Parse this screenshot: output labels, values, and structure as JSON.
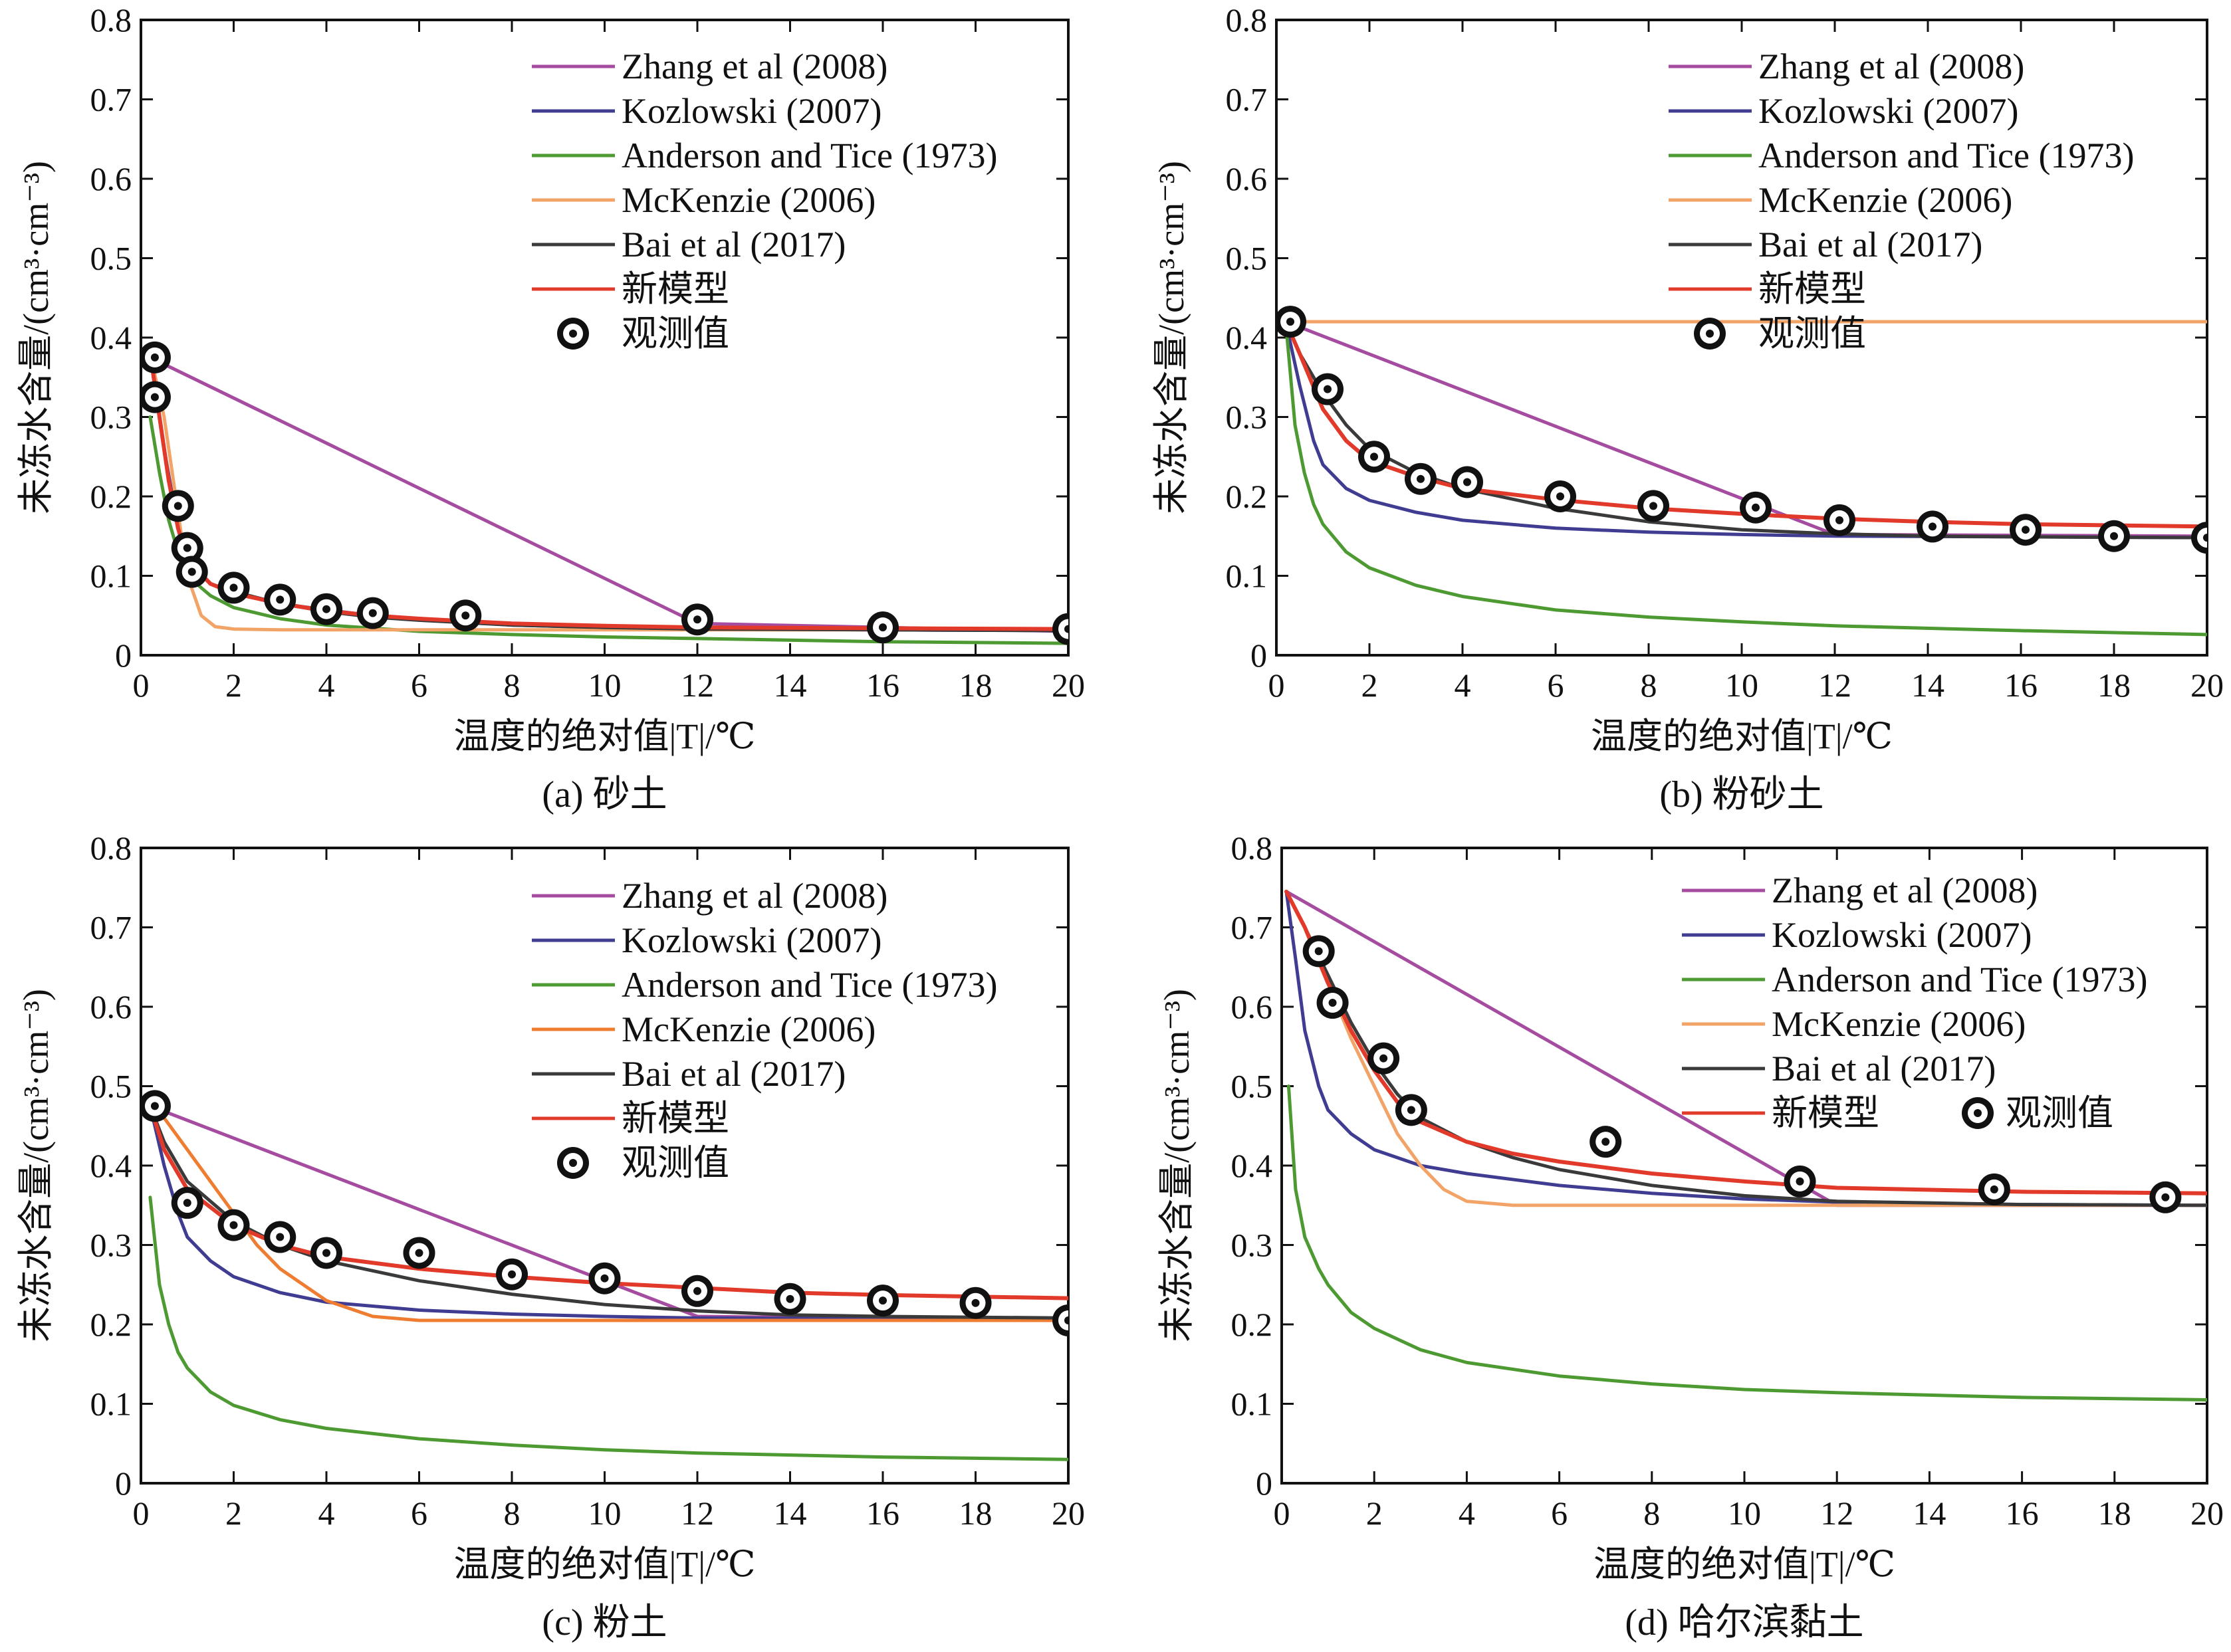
{
  "colors": {
    "zhang": "#a54ca0",
    "kozlowski": "#3f3c92",
    "anderson": "#4e9a32",
    "mckenzie": "#f2a468",
    "mckenzie_c": "#ee7d32",
    "bai": "#3a3a3a",
    "new": "#e23a2a",
    "obs_fill": "#111111",
    "obs_ring": "#ffffff"
  },
  "chart_data": [
    {
      "type": "line",
      "caption": "(a) 砂土",
      "xlabel": "温度的绝对值|T|/℃",
      "ylabel": "未冻水含量/(cm³·cm⁻³)",
      "xlim": [
        0,
        20
      ],
      "ylim": [
        0,
        0.8
      ],
      "xticks": [
        "0",
        "2",
        "4",
        "6",
        "8",
        "10",
        "12",
        "14",
        "16",
        "18",
        "20"
      ],
      "yticks": [
        "0",
        "0.1",
        "0.2",
        "0.3",
        "0.4",
        "0.5",
        "0.6",
        "0.7",
        "0.8"
      ],
      "legend_position": "top-right",
      "series": [
        {
          "name": "Zhang et al (2008)",
          "color_key": "zhang",
          "x": [
            0.2,
            12,
            20
          ],
          "y": [
            0.375,
            0.04,
            0.03
          ]
        },
        {
          "name": "Kozlowski (2007)",
          "color_key": "kozlowski",
          "x": [
            0.2,
            0.5,
            0.8,
            1.0,
            1.5,
            2,
            3,
            4,
            5,
            6,
            8,
            10,
            12,
            16,
            20
          ],
          "y": [
            0.38,
            0.26,
            0.16,
            0.12,
            0.09,
            0.08,
            0.065,
            0.057,
            0.05,
            0.045,
            0.038,
            0.035,
            0.033,
            0.032,
            0.031
          ]
        },
        {
          "name": "Anderson and Tice (1973)",
          "color_key": "anderson",
          "x": [
            0.2,
            0.4,
            0.6,
            0.8,
            1,
            1.5,
            2,
            3,
            4,
            6,
            8,
            10,
            12,
            16,
            20
          ],
          "y": [
            0.3,
            0.23,
            0.17,
            0.13,
            0.1,
            0.075,
            0.06,
            0.046,
            0.038,
            0.03,
            0.026,
            0.023,
            0.021,
            0.017,
            0.015
          ]
        },
        {
          "name": "McKenzie (2006)",
          "color_key": "mckenzie",
          "x": [
            0.2,
            0.5,
            0.8,
            1.0,
            1.3,
            1.6,
            2,
            3,
            4,
            6,
            10,
            20
          ],
          "y": [
            0.38,
            0.3,
            0.18,
            0.1,
            0.05,
            0.036,
            0.033,
            0.032,
            0.032,
            0.032,
            0.032,
            0.032
          ]
        },
        {
          "name": "Bai et al (2017)",
          "color_key": "bai",
          "x": [
            0.2,
            0.4,
            0.6,
            0.8,
            1.0,
            1.5,
            2,
            3,
            4,
            5,
            6,
            8,
            10,
            12,
            16,
            20
          ],
          "y": [
            0.38,
            0.3,
            0.22,
            0.16,
            0.12,
            0.09,
            0.08,
            0.065,
            0.055,
            0.048,
            0.044,
            0.038,
            0.035,
            0.033,
            0.032,
            0.031
          ]
        },
        {
          "name": "新模型",
          "color_key": "new",
          "x": [
            0.2,
            0.4,
            0.6,
            0.8,
            1.0,
            1.5,
            2,
            3,
            4,
            5,
            6,
            8,
            10,
            12,
            16,
            20
          ],
          "y": [
            0.38,
            0.3,
            0.22,
            0.16,
            0.12,
            0.09,
            0.078,
            0.065,
            0.056,
            0.05,
            0.046,
            0.04,
            0.037,
            0.035,
            0.034,
            0.033
          ]
        },
        {
          "name": "观测值",
          "marker": "obs",
          "x": [
            0.3,
            0.3,
            0.8,
            1.0,
            1.1,
            2.0,
            3.0,
            4.0,
            5.0,
            7.0,
            12.0,
            16.0,
            20.0
          ],
          "y": [
            0.375,
            0.325,
            0.188,
            0.135,
            0.105,
            0.085,
            0.07,
            0.058,
            0.053,
            0.05,
            0.045,
            0.035,
            0.033
          ]
        }
      ]
    },
    {
      "type": "line",
      "caption": "(b) 粉砂土",
      "xlabel": "温度的绝对值|T|/℃",
      "ylabel": "未冻水含量/(cm³·cm⁻³)",
      "xlim": [
        0,
        20
      ],
      "ylim": [
        0,
        0.8
      ],
      "xticks": [
        "0",
        "2",
        "4",
        "6",
        "8",
        "10",
        "12",
        "14",
        "16",
        "18",
        "20"
      ],
      "yticks": [
        "0",
        "0.1",
        "0.2",
        "0.3",
        "0.4",
        "0.5",
        "0.6",
        "0.7",
        "0.8"
      ],
      "legend_position": "top-right",
      "series": [
        {
          "name": "Zhang et al (2008)",
          "color_key": "zhang",
          "x": [
            0.2,
            12,
            20
          ],
          "y": [
            0.42,
            0.152,
            0.15
          ]
        },
        {
          "name": "Kozlowski (2007)",
          "color_key": "kozlowski",
          "x": [
            0.2,
            0.5,
            0.8,
            1.0,
            1.5,
            2,
            3,
            4,
            6,
            8,
            10,
            12,
            16,
            20
          ],
          "y": [
            0.42,
            0.34,
            0.27,
            0.24,
            0.21,
            0.195,
            0.18,
            0.17,
            0.16,
            0.155,
            0.152,
            0.15,
            0.149,
            0.148
          ]
        },
        {
          "name": "Anderson and Tice (1973)",
          "color_key": "anderson",
          "x": [
            0.2,
            0.4,
            0.6,
            0.8,
            1,
            1.5,
            2,
            3,
            4,
            6,
            8,
            10,
            12,
            16,
            20
          ],
          "y": [
            0.42,
            0.29,
            0.23,
            0.19,
            0.165,
            0.13,
            0.11,
            0.088,
            0.074,
            0.057,
            0.048,
            0.042,
            0.037,
            0.031,
            0.026
          ]
        },
        {
          "name": "McKenzie (2006)",
          "color_key": "mckenzie",
          "x": [
            0.2,
            20
          ],
          "y": [
            0.42,
            0.42
          ]
        },
        {
          "name": "Bai et al (2017)",
          "color_key": "bai",
          "x": [
            0.2,
            0.5,
            1.0,
            1.5,
            2,
            3,
            4,
            6,
            8,
            10,
            12,
            14,
            16,
            20
          ],
          "y": [
            0.42,
            0.38,
            0.33,
            0.29,
            0.26,
            0.23,
            0.21,
            0.185,
            0.168,
            0.158,
            0.153,
            0.15,
            0.149,
            0.148
          ]
        },
        {
          "name": "新模型",
          "color_key": "new",
          "x": [
            0.2,
            0.5,
            1.0,
            1.5,
            2,
            3,
            4,
            6,
            8,
            10,
            12,
            14,
            16,
            20
          ],
          "y": [
            0.42,
            0.38,
            0.31,
            0.27,
            0.245,
            0.225,
            0.21,
            0.196,
            0.185,
            0.178,
            0.172,
            0.168,
            0.165,
            0.162
          ]
        },
        {
          "name": "观测值",
          "marker": "obs",
          "x": [
            0.3,
            1.1,
            2.1,
            3.1,
            4.1,
            6.1,
            8.1,
            10.3,
            12.1,
            14.1,
            16.1,
            18.0,
            20.0
          ],
          "y": [
            0.42,
            0.335,
            0.25,
            0.222,
            0.218,
            0.2,
            0.188,
            0.186,
            0.17,
            0.162,
            0.158,
            0.15,
            0.148
          ]
        }
      ]
    },
    {
      "type": "line",
      "caption": "(c) 粉土",
      "xlabel": "温度的绝对值|T|/℃",
      "ylabel": "未冻水含量/(cm³·cm⁻³)",
      "xlim": [
        0,
        20
      ],
      "ylim": [
        0,
        0.8
      ],
      "xticks": [
        "0",
        "2",
        "4",
        "6",
        "8",
        "10",
        "12",
        "14",
        "16",
        "18",
        "20"
      ],
      "yticks": [
        "0",
        "0.1",
        "0.2",
        "0.3",
        "0.4",
        "0.5",
        "0.6",
        "0.7",
        "0.8"
      ],
      "legend_position": "top-right",
      "series": [
        {
          "name": "Zhang et al (2008)",
          "color_key": "zhang",
          "x": [
            0.2,
            12,
            20
          ],
          "y": [
            0.475,
            0.21,
            0.205
          ]
        },
        {
          "name": "Kozlowski (2007)",
          "color_key": "kozlowski",
          "x": [
            0.2,
            0.5,
            0.8,
            1.0,
            1.5,
            2,
            3,
            4,
            6,
            8,
            10,
            12,
            16,
            20
          ],
          "y": [
            0.475,
            0.4,
            0.34,
            0.31,
            0.28,
            0.26,
            0.24,
            0.228,
            0.218,
            0.213,
            0.21,
            0.208,
            0.207,
            0.206
          ]
        },
        {
          "name": "Anderson and Tice (1973)",
          "color_key": "anderson",
          "x": [
            0.2,
            0.4,
            0.6,
            0.8,
            1,
            1.5,
            2,
            3,
            4,
            6,
            8,
            10,
            12,
            16,
            20
          ],
          "y": [
            0.36,
            0.25,
            0.2,
            0.165,
            0.145,
            0.115,
            0.098,
            0.08,
            0.069,
            0.056,
            0.048,
            0.042,
            0.038,
            0.033,
            0.03
          ]
        },
        {
          "name": "McKenzie (2006)",
          "color_key": "mckenzie_c",
          "x": [
            0.2,
            0.5,
            1.0,
            1.5,
            2,
            2.5,
            3,
            4,
            5,
            6,
            8,
            10,
            20
          ],
          "y": [
            0.475,
            0.46,
            0.42,
            0.38,
            0.34,
            0.3,
            0.27,
            0.23,
            0.21,
            0.205,
            0.205,
            0.205,
            0.205
          ]
        },
        {
          "name": "Bai et al (2017)",
          "color_key": "bai",
          "x": [
            0.2,
            0.5,
            1.0,
            2,
            3,
            4,
            6,
            8,
            10,
            12,
            14,
            16,
            20
          ],
          "y": [
            0.475,
            0.43,
            0.38,
            0.33,
            0.3,
            0.28,
            0.255,
            0.238,
            0.225,
            0.217,
            0.212,
            0.21,
            0.208
          ]
        },
        {
          "name": "新模型",
          "color_key": "new",
          "x": [
            0.2,
            0.5,
            1.0,
            2,
            3,
            4,
            6,
            8,
            10,
            12,
            14,
            16,
            20
          ],
          "y": [
            0.475,
            0.42,
            0.37,
            0.325,
            0.3,
            0.285,
            0.27,
            0.26,
            0.252,
            0.246,
            0.24,
            0.237,
            0.233
          ]
        },
        {
          "name": "观测值",
          "marker": "obs",
          "x": [
            0.3,
            1.0,
            2.0,
            3.0,
            4.0,
            6.0,
            8.0,
            10.0,
            12.0,
            14.0,
            16.0,
            18.0,
            20.0
          ],
          "y": [
            0.475,
            0.353,
            0.325,
            0.31,
            0.29,
            0.29,
            0.263,
            0.258,
            0.242,
            0.232,
            0.23,
            0.227,
            0.205
          ]
        }
      ]
    },
    {
      "type": "line",
      "caption": "(d) 哈尔滨黏土",
      "xlabel": "温度的绝对值|T|/℃",
      "ylabel": "未冻水含量/(cm³·cm⁻³)",
      "xlim": [
        0,
        20
      ],
      "ylim": [
        0,
        0.8
      ],
      "xticks": [
        "0",
        "2",
        "4",
        "6",
        "8",
        "10",
        "12",
        "14",
        "16",
        "18",
        "20"
      ],
      "yticks": [
        "0",
        "0.1",
        "0.2",
        "0.3",
        "0.4",
        "0.5",
        "0.6",
        "0.7",
        "0.8"
      ],
      "legend_position": "top-right",
      "series": [
        {
          "name": "Zhang et al (2008)",
          "color_key": "zhang",
          "x": [
            0.1,
            12,
            20
          ],
          "y": [
            0.745,
            0.35,
            0.35
          ]
        },
        {
          "name": "Kozlowski (2007)",
          "color_key": "kozlowski",
          "x": [
            0.1,
            0.3,
            0.5,
            0.8,
            1.0,
            1.5,
            2,
            3,
            4,
            6,
            8,
            10,
            12,
            16,
            20
          ],
          "y": [
            0.745,
            0.66,
            0.57,
            0.5,
            0.47,
            0.44,
            0.42,
            0.4,
            0.39,
            0.375,
            0.365,
            0.358,
            0.354,
            0.351,
            0.35
          ]
        },
        {
          "name": "Anderson and Tice (1973)",
          "color_key": "anderson",
          "x": [
            0.15,
            0.3,
            0.5,
            0.8,
            1,
            1.5,
            2,
            3,
            4,
            6,
            8,
            10,
            12,
            16,
            20
          ],
          "y": [
            0.5,
            0.37,
            0.31,
            0.27,
            0.25,
            0.215,
            0.195,
            0.168,
            0.152,
            0.135,
            0.125,
            0.118,
            0.114,
            0.108,
            0.105
          ]
        },
        {
          "name": "McKenzie (2006)",
          "color_key": "mckenzie",
          "x": [
            0.1,
            0.5,
            1.0,
            1.5,
            2,
            2.5,
            3,
            3.5,
            4,
            5,
            6,
            10,
            20
          ],
          "y": [
            0.745,
            0.7,
            0.63,
            0.56,
            0.5,
            0.44,
            0.4,
            0.37,
            0.355,
            0.35,
            0.35,
            0.35,
            0.35
          ]
        },
        {
          "name": "Bai et al (2017)",
          "color_key": "bai",
          "x": [
            0.1,
            0.5,
            1.0,
            1.5,
            2,
            2.5,
            3,
            4,
            5,
            6,
            8,
            10,
            12,
            16,
            20
          ],
          "y": [
            0.745,
            0.7,
            0.64,
            0.58,
            0.53,
            0.49,
            0.46,
            0.43,
            0.41,
            0.395,
            0.375,
            0.362,
            0.355,
            0.351,
            0.35
          ]
        },
        {
          "name": "新模型",
          "color_key": "new",
          "x": [
            0.1,
            0.5,
            1.0,
            1.5,
            2,
            2.5,
            3,
            4,
            5,
            6,
            8,
            10,
            12,
            16,
            20
          ],
          "y": [
            0.745,
            0.7,
            0.63,
            0.57,
            0.52,
            0.48,
            0.455,
            0.43,
            0.415,
            0.405,
            0.39,
            0.38,
            0.372,
            0.367,
            0.365
          ]
        },
        {
          "name": "观测值",
          "marker": "obs",
          "x": [
            0.8,
            1.1,
            2.2,
            2.8,
            7.0,
            11.2,
            15.4,
            19.1
          ],
          "y": [
            0.67,
            0.605,
            0.535,
            0.47,
            0.43,
            0.38,
            0.37,
            0.36
          ]
        }
      ]
    }
  ]
}
